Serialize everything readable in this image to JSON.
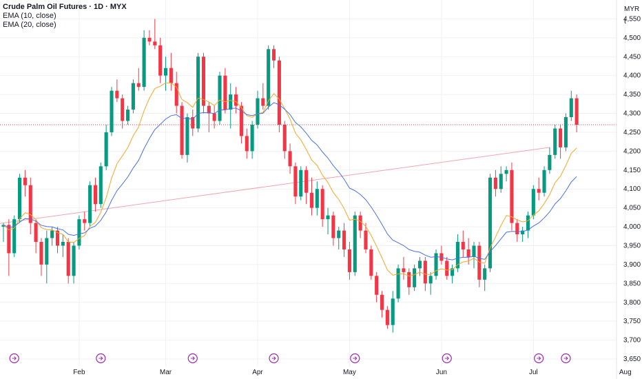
{
  "legend": {
    "title": "Crude Palm Oil Futures · 1D · MYX",
    "ema10": "EMA (10, close)",
    "ema20": "EMA (20, close)"
  },
  "axis": {
    "currency": "MYR",
    "unit": "t"
  },
  "colors": {
    "up": "#089981",
    "down": "#f23645",
    "ema10": "#f5a623",
    "ema20": "#4a6fe3",
    "trendline": "#f4a3ad",
    "grid": "#eef0f3"
  },
  "chart_data": {
    "type": "candlestick",
    "title": "Crude Palm Oil Futures · 1D · MYX",
    "xlabel": "",
    "ylabel": "",
    "ylim": [
      3630,
      4600
    ],
    "y_ticks": [
      3650,
      3700,
      3750,
      3800,
      3850,
      3900,
      3950,
      4000,
      4050,
      4100,
      4150,
      4200,
      4250,
      4300,
      4350,
      4400,
      4450,
      4500,
      4550
    ],
    "x_tick_labels": [
      "Feb",
      "Mar",
      "Apr",
      "May",
      "Jun",
      "Jul",
      "Aug"
    ],
    "x_tick_index": [
      14,
      30,
      47,
      64,
      81,
      98,
      115
    ],
    "last_price": 4270,
    "candles": [
      [
        4000,
        4010,
        3960,
        4005
      ],
      [
        4005,
        4020,
        3870,
        3930
      ],
      [
        3930,
        4030,
        3920,
        4020
      ],
      [
        4020,
        4140,
        4010,
        4130
      ],
      [
        4130,
        4150,
        4080,
        4110
      ],
      [
        4110,
        4130,
        3980,
        4010
      ],
      [
        4010,
        4020,
        3930,
        3960
      ],
      [
        3960,
        3970,
        3870,
        3900
      ],
      [
        3900,
        3990,
        3850,
        3970
      ],
      [
        3970,
        4000,
        3950,
        3990
      ],
      [
        3990,
        4000,
        3930,
        3950
      ],
      [
        3950,
        3980,
        3920,
        3960
      ],
      [
        3960,
        3970,
        3850,
        3870
      ],
      [
        3870,
        3960,
        3850,
        3950
      ],
      [
        3950,
        4030,
        3940,
        4020
      ],
      [
        4020,
        4040,
        3990,
        4010
      ],
      [
        4010,
        4120,
        4000,
        4110
      ],
      [
        4110,
        4130,
        4040,
        4060
      ],
      [
        4060,
        4170,
        4050,
        4160
      ],
      [
        4160,
        4270,
        4150,
        4250
      ],
      [
        4250,
        4370,
        4240,
        4360
      ],
      [
        4360,
        4390,
        4330,
        4340
      ],
      [
        4340,
        4350,
        4260,
        4280
      ],
      [
        4280,
        4320,
        4270,
        4310
      ],
      [
        4310,
        4390,
        4300,
        4380
      ],
      [
        4380,
        4420,
        4360,
        4370
      ],
      [
        4370,
        4520,
        4360,
        4500
      ],
      [
        4500,
        4520,
        4480,
        4490
      ],
      [
        4490,
        4550,
        4470,
        4480
      ],
      [
        4480,
        4500,
        4380,
        4400
      ],
      [
        4400,
        4450,
        4360,
        4420
      ],
      [
        4420,
        4460,
        4360,
        4380
      ],
      [
        4380,
        4410,
        4300,
        4320
      ],
      [
        4320,
        4330,
        4180,
        4190
      ],
      [
        4190,
        4300,
        4170,
        4290
      ],
      [
        4290,
        4310,
        4240,
        4260
      ],
      [
        4260,
        4460,
        4250,
        4450
      ],
      [
        4450,
        4460,
        4300,
        4320
      ],
      [
        4320,
        4330,
        4250,
        4300
      ],
      [
        4300,
        4320,
        4260,
        4280
      ],
      [
        4280,
        4410,
        4270,
        4400
      ],
      [
        4400,
        4420,
        4300,
        4310
      ],
      [
        4310,
        4380,
        4260,
        4350
      ],
      [
        4350,
        4370,
        4300,
        4320
      ],
      [
        4320,
        4330,
        4220,
        4240
      ],
      [
        4240,
        4260,
        4180,
        4200
      ],
      [
        4200,
        4280,
        4180,
        4270
      ],
      [
        4270,
        4360,
        4260,
        4340
      ],
      [
        4340,
        4380,
        4310,
        4320
      ],
      [
        4320,
        4480,
        4310,
        4470
      ],
      [
        4470,
        4480,
        4420,
        4440
      ],
      [
        4440,
        4450,
        4250,
        4270
      ],
      [
        4270,
        4280,
        4180,
        4200
      ],
      [
        4200,
        4220,
        4140,
        4160
      ],
      [
        4160,
        4170,
        4060,
        4080
      ],
      [
        4080,
        4160,
        4070,
        4150
      ],
      [
        4150,
        4160,
        4060,
        4090
      ],
      [
        4090,
        4130,
        4030,
        4050
      ],
      [
        4050,
        4120,
        4030,
        4100
      ],
      [
        4100,
        4110,
        4000,
        4020
      ],
      [
        4020,
        4050,
        3980,
        4030
      ],
      [
        4030,
        4040,
        3950,
        3970
      ],
      [
        3970,
        4000,
        3940,
        3990
      ],
      [
        3990,
        4010,
        3920,
        3940
      ],
      [
        3940,
        3960,
        3860,
        3880
      ],
      [
        3880,
        4040,
        3870,
        4030
      ],
      [
        4030,
        4040,
        3970,
        3990
      ],
      [
        3990,
        4010,
        3930,
        3940
      ],
      [
        3940,
        3950,
        3860,
        3870
      ],
      [
        3870,
        3880,
        3800,
        3820
      ],
      [
        3820,
        3830,
        3760,
        3780
      ],
      [
        3780,
        3790,
        3730,
        3740
      ],
      [
        3740,
        3830,
        3720,
        3810
      ],
      [
        3810,
        3900,
        3800,
        3890
      ],
      [
        3890,
        3920,
        3860,
        3880
      ],
      [
        3880,
        3890,
        3820,
        3840
      ],
      [
        3840,
        3900,
        3830,
        3890
      ],
      [
        3890,
        3920,
        3870,
        3910
      ],
      [
        3910,
        3920,
        3830,
        3850
      ],
      [
        3850,
        3880,
        3820,
        3870
      ],
      [
        3870,
        3940,
        3860,
        3930
      ],
      [
        3930,
        3950,
        3900,
        3910
      ],
      [
        3910,
        3920,
        3860,
        3870
      ],
      [
        3870,
        3900,
        3850,
        3890
      ],
      [
        3890,
        3980,
        3880,
        3960
      ],
      [
        3960,
        3990,
        3920,
        3940
      ],
      [
        3940,
        3970,
        3900,
        3920
      ],
      [
        3920,
        3960,
        3890,
        3950
      ],
      [
        3950,
        3960,
        3840,
        3860
      ],
      [
        3860,
        3900,
        3830,
        3890
      ],
      [
        3890,
        4140,
        3880,
        4130
      ],
      [
        4130,
        4150,
        4080,
        4100
      ],
      [
        4100,
        4160,
        4090,
        4140
      ],
      [
        4140,
        4160,
        4120,
        4150
      ],
      [
        4150,
        4170,
        3990,
        4010
      ],
      [
        4010,
        4020,
        3960,
        3980
      ],
      [
        3980,
        4000,
        3960,
        3990
      ],
      [
        3990,
        4040,
        3970,
        4030
      ],
      [
        4030,
        4110,
        4020,
        4100
      ],
      [
        4100,
        4130,
        4070,
        4090
      ],
      [
        4090,
        4160,
        4080,
        4150
      ],
      [
        4150,
        4210,
        4140,
        4190
      ],
      [
        4190,
        4270,
        4180,
        4260
      ],
      [
        4260,
        4270,
        4180,
        4210
      ],
      [
        4210,
        4300,
        4200,
        4290
      ],
      [
        4290,
        4360,
        4280,
        4340
      ],
      [
        4340,
        4350,
        4250,
        4270
      ]
    ]
  }
}
